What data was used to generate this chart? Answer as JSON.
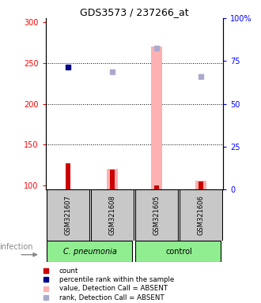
{
  "title": "GDS3573 / 237266_at",
  "samples": [
    "GSM321607",
    "GSM321608",
    "GSM321605",
    "GSM321606"
  ],
  "group_labels": [
    "C. pneumonia",
    "control"
  ],
  "ylim_left": [
    95,
    305
  ],
  "ylim_right": [
    0,
    100
  ],
  "yticks_left": [
    100,
    150,
    200,
    250,
    300
  ],
  "yticks_right": [
    0,
    25,
    50,
    75,
    100
  ],
  "ytick_labels_right": [
    "0",
    "25",
    "50",
    "75",
    "100%"
  ],
  "red_bars": {
    "GSM321607": 127,
    "GSM321608": 119,
    "GSM321605": 100,
    "GSM321606": 105
  },
  "blue_squares": {
    "GSM321607": 245
  },
  "pink_bars": {
    "GSM321608": 120,
    "GSM321605": 270,
    "GSM321606": 106
  },
  "light_blue_squares": {
    "GSM321608": 239,
    "GSM321605": 268,
    "GSM321606": 233
  },
  "red_bar_color": "#CC0000",
  "dark_blue_color": "#00008B",
  "pink_color": "#FFB0B0",
  "light_blue_color": "#AAAACC",
  "gray_box_color": "#C8C8C8",
  "green_box_color": "#90EE90",
  "label_count": "count",
  "label_percentile": "percentile rank within the sample",
  "label_value_absent": "value, Detection Call = ABSENT",
  "label_rank_absent": "rank, Detection Call = ABSENT",
  "infection_label": "infection",
  "group_split": 2,
  "pink_bar_width": 0.25,
  "red_bar_width": 0.1
}
